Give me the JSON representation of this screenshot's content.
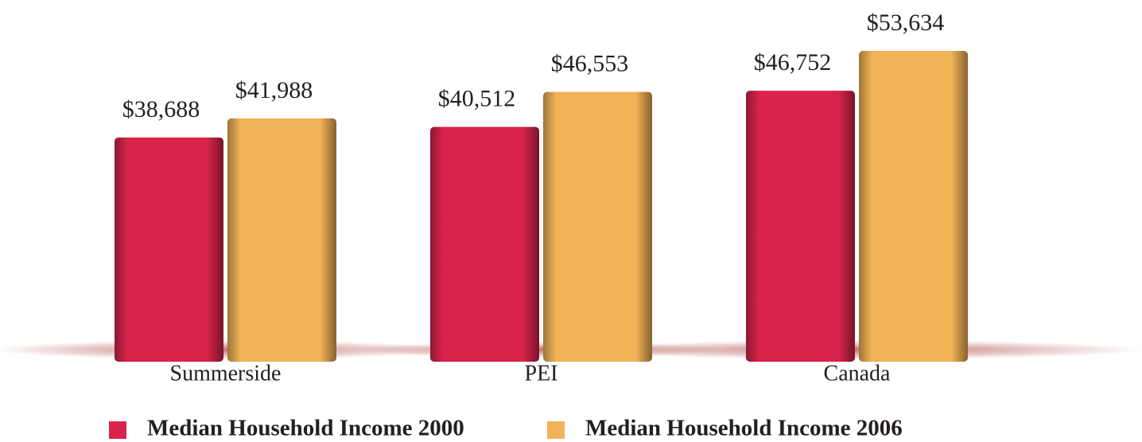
{
  "chart_data": {
    "type": "bar",
    "categories": [
      "Summerside",
      "PEI",
      "Canada"
    ],
    "series": [
      {
        "name": "Median Household Income 2000",
        "color": "#d8244b",
        "values": [
          38688,
          40512,
          46752
        ],
        "value_labels": [
          "$38,688",
          "$40,512",
          "$46,752"
        ]
      },
      {
        "name": "Median Household Income 2006",
        "color": "#f2b357",
        "values": [
          41988,
          46553,
          53634
        ],
        "value_labels": [
          "$41,988",
          "$46,553",
          "$53,634"
        ]
      }
    ],
    "legend": "bottom"
  }
}
